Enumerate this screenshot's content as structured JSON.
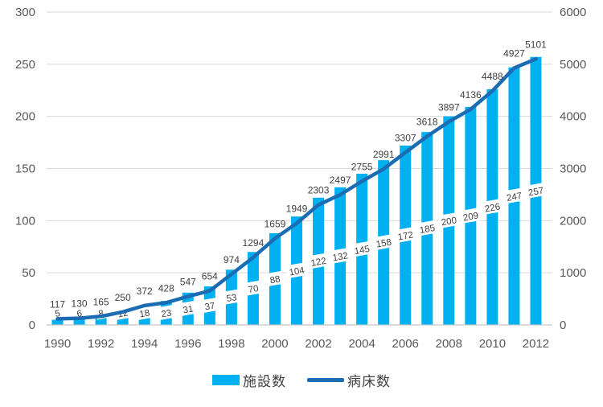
{
  "chart_data": {
    "type": "combo",
    "title": "",
    "x": [
      1990,
      1991,
      1992,
      1993,
      1994,
      1995,
      1996,
      1997,
      1998,
      1999,
      2000,
      2001,
      2002,
      2003,
      2004,
      2005,
      2006,
      2007,
      2008,
      2009,
      2010,
      2011,
      2012
    ],
    "series": [
      {
        "name": "施設数",
        "type": "bar",
        "axis": "left",
        "color": "#00B0F0",
        "values": [
          5,
          6,
          8,
          12,
          18,
          23,
          31,
          37,
          53,
          70,
          88,
          104,
          122,
          132,
          145,
          158,
          172,
          185,
          200,
          209,
          226,
          247,
          257
        ]
      },
      {
        "name": "病床数",
        "type": "line",
        "axis": "right",
        "color": "#1B6CB3",
        "values": [
          117,
          130,
          165,
          250,
          372,
          428,
          547,
          654,
          974,
          1294,
          1659,
          1949,
          2303,
          2497,
          2755,
          2991,
          3307,
          3618,
          3897,
          4136,
          4488,
          4927,
          5101
        ]
      }
    ],
    "left_axis": {
      "min": 0,
      "max": 300,
      "step": 50
    },
    "right_axis": {
      "min": 0,
      "max": 6000,
      "step": 1000
    },
    "x_tick_step": 2,
    "grid": true,
    "legend_position": "bottom",
    "colors": {
      "grid": "#D9D9D9",
      "axis_line": "#C6C6C6",
      "tick_text": "#595959",
      "data_label_text": "#404040",
      "background": "#FFFFFF"
    }
  }
}
